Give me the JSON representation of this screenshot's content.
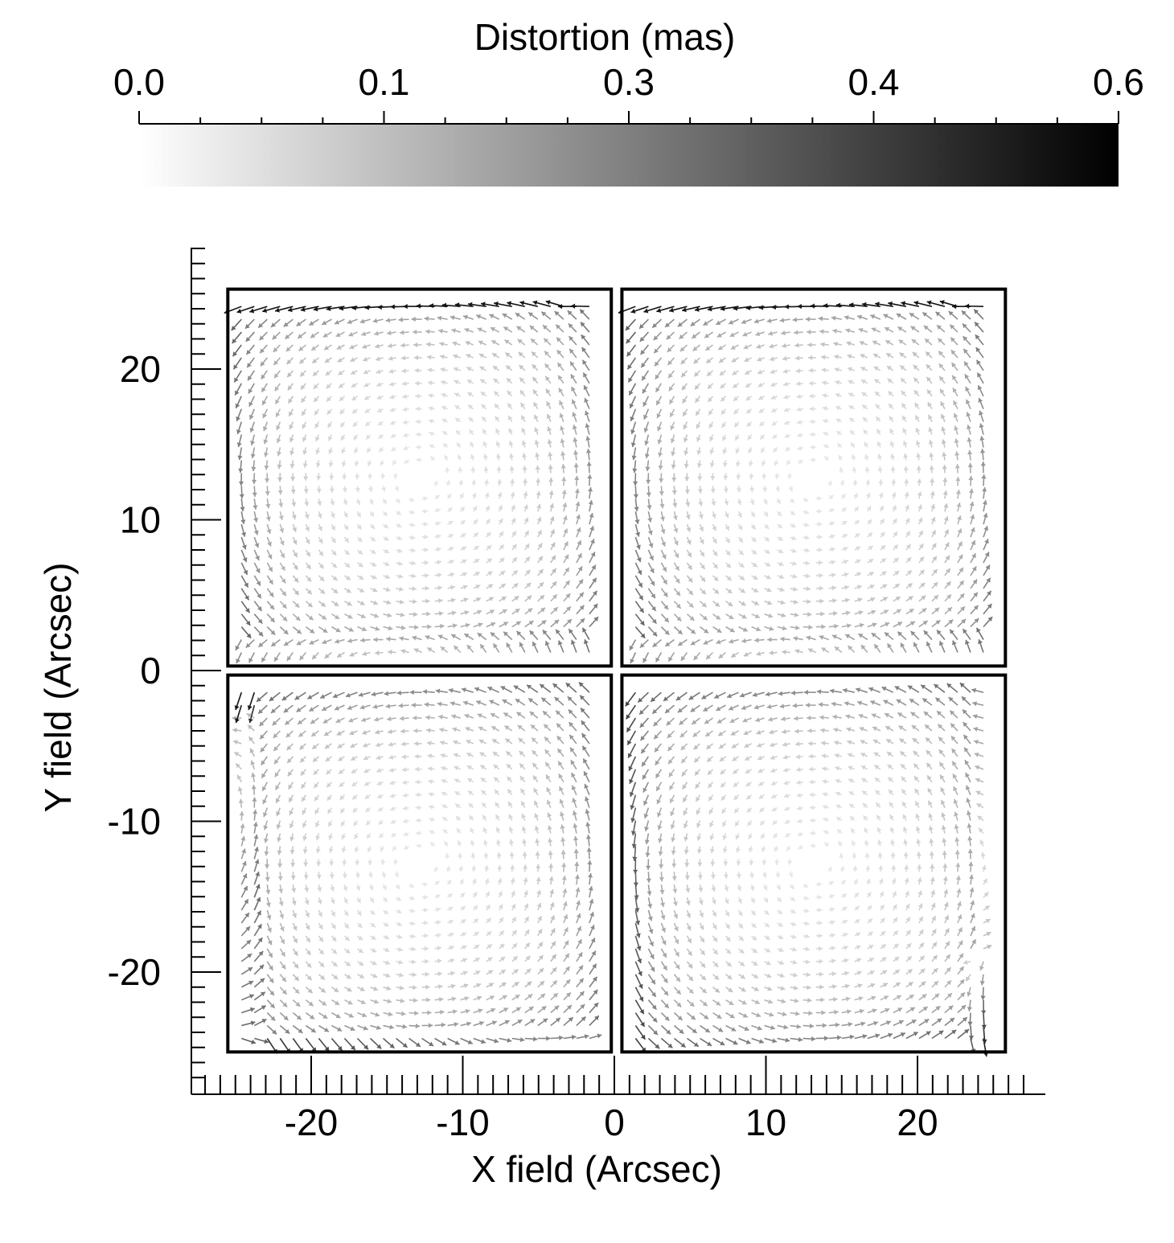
{
  "colorbar": {
    "title": "Distortion (mas)",
    "tick_labels": [
      "0.0",
      "0.1",
      "0.3",
      "0.4",
      "0.6"
    ],
    "range": [
      0.0,
      0.6
    ],
    "color_low": "#ffffff",
    "color_high": "#000000"
  },
  "chart_data": {
    "type": "quiver",
    "xlabel": "X field (Arcsec)",
    "ylabel": "Y field (Arcsec)",
    "xlim": [
      -28,
      28
    ],
    "ylim": [
      -27,
      28
    ],
    "x_ticks": [
      "-20",
      "-10",
      "0",
      "10",
      "20"
    ],
    "x_tick_values": [
      -20,
      -10,
      0,
      10,
      20
    ],
    "y_ticks": [
      "20",
      "10",
      "0",
      "-10",
      "-20"
    ],
    "y_tick_values": [
      20,
      10,
      0,
      -10,
      -20
    ],
    "grid": false,
    "quadrants": [
      {
        "name": "upper-left",
        "x": [
          -25.5,
          -0.2
        ],
        "y": [
          0.3,
          25.3
        ],
        "pattern": "ccw-edge-flow"
      },
      {
        "name": "upper-right",
        "x": [
          0.5,
          25.8
        ],
        "y": [
          0.3,
          25.3
        ],
        "pattern": "ccw-edge-flow"
      },
      {
        "name": "lower-left",
        "x": [
          -25.5,
          -0.2
        ],
        "y": [
          -25.3,
          -0.3
        ],
        "pattern": "left-edge-upward"
      },
      {
        "name": "lower-right",
        "x": [
          0.5,
          25.8
        ],
        "y": [
          -25.3,
          -0.3
        ],
        "pattern": "right-edge-downward"
      }
    ],
    "arrow_grid_step": 0.85,
    "distortion_range_mas": [
      0.0,
      0.6
    ],
    "max_distortion_mas": 0.55
  }
}
